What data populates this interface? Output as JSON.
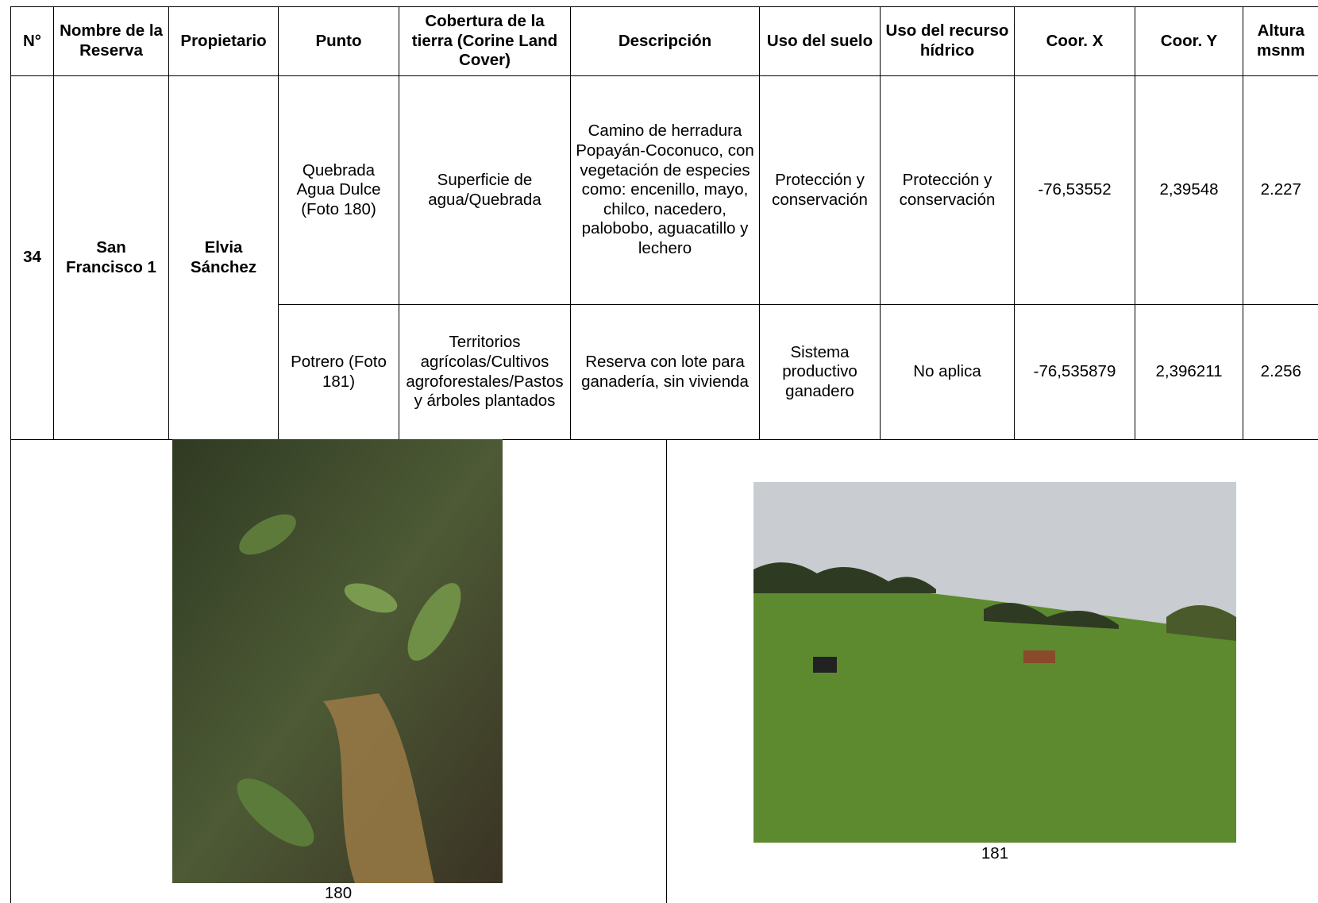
{
  "table": {
    "headers": [
      "N°",
      "Nombre de la Reserva",
      "Propietario",
      "Punto",
      "Cobertura de la tierra (Corine Land Cover)",
      "Descripción",
      "Uso del suelo",
      "Uso del recurso hídrico",
      "Coor. X",
      "Coor. Y",
      "Altura msnm"
    ],
    "rows": [
      [
        "34",
        "San Francisco 1",
        "Elvia Sánchez",
        "Quebrada Agua Dulce (Foto 180)",
        "Superficie de agua/Quebrada",
        "Camino de herradura Popayán-Coconuco, con vegetación de especies como: encenillo, mayo, chilco, nacedero, palobobo, aguacatillo y lechero",
        "Protección y conservación",
        "Protección y conservación",
        "-76,53552",
        "2,39548",
        "2.227"
      ],
      [
        "Potrero (Foto 181)",
        "Territorios agrícolas/Cultivos agroforestales/Pastos y árboles plantados",
        "Reserva con lote para ganadería, sin vivienda",
        "Sistema productivo ganadero",
        "No aplica",
        "-76,535879",
        "2,396211",
        "2.256"
      ]
    ]
  },
  "photos": [
    {
      "caption": "180"
    },
    {
      "caption": "181"
    }
  ]
}
